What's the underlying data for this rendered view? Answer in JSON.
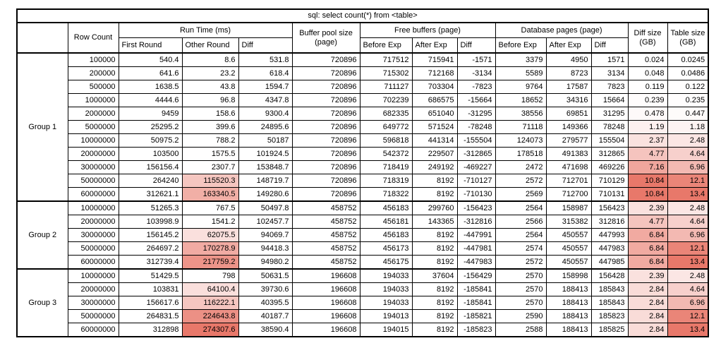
{
  "title": "sql: select count(*) from <table>",
  "header": {
    "row_count": "Row Count",
    "run_time": "Run Time (ms)",
    "first_round": "First Round",
    "other_round": "Other Round",
    "run_diff": "Diff",
    "buffer_pool_line1": "Buffer pool size",
    "buffer_pool_line2": "(page)",
    "free_buffers": "Free buffers (page)",
    "fb_before": "Before Exp",
    "fb_after": "After Exp",
    "fb_diff": "Diff",
    "database_pages": "Database pages (page)",
    "db_before": "Before Exp",
    "db_after": "After Exp",
    "db_diff": "Diff",
    "diff_size_line1": "Diff size",
    "diff_size_line2": "(GB)",
    "table_size_line1": "Table size",
    "table_size_line2": "(GB)"
  },
  "column_names": [
    "row-count",
    "first-round",
    "other-round",
    "run-time-diff",
    "buffer-pool-size",
    "free-before-exp",
    "free-after-exp",
    "free-diff",
    "db-before-exp",
    "db-after-exp",
    "db-diff",
    "diff-size-gb",
    "table-size-gb"
  ],
  "groups": [
    {
      "label": "Group 1",
      "rows": [
        [
          "100000",
          "540.4",
          "8.6",
          "531.8",
          "720896",
          "717512",
          "715941",
          "-1571",
          "3379",
          "4950",
          "1571",
          "0.024",
          "0.0245"
        ],
        [
          "200000",
          "641.6",
          "23.2",
          "618.4",
          "720896",
          "715302",
          "712168",
          "-3134",
          "5589",
          "8723",
          "3134",
          "0.048",
          "0.0486"
        ],
        [
          "500000",
          "1638.5",
          "43.8",
          "1594.7",
          "720896",
          "711127",
          "703304",
          "-7823",
          "9764",
          "17587",
          "7823",
          "0.119",
          "0.122"
        ],
        [
          "1000000",
          "4444.6",
          "96.8",
          "4347.8",
          "720896",
          "702239",
          "686575",
          "-15664",
          "18652",
          "34316",
          "15664",
          "0.239",
          "0.235"
        ],
        [
          "2000000",
          "9459",
          "158.6",
          "9300.4",
          "720896",
          "682335",
          "651040",
          "-31295",
          "38556",
          "69851",
          "31295",
          "0.478",
          "0.447"
        ],
        [
          "5000000",
          "25295.2",
          "399.6",
          "24895.6",
          "720896",
          "649772",
          "571524",
          "-78248",
          "71118",
          "149366",
          "78248",
          "1.19",
          "1.18"
        ],
        [
          "10000000",
          "50975.2",
          "788.2",
          "50187",
          "720896",
          "596818",
          "441314",
          "-155504",
          "124073",
          "279577",
          "155504",
          "2.37",
          "2.48"
        ],
        [
          "20000000",
          "103500",
          "1575.5",
          "101924.5",
          "720896",
          "542372",
          "229507",
          "-312865",
          "178518",
          "491383",
          "312865",
          "4.77",
          "4.64"
        ],
        [
          "30000000",
          "156156.4",
          "2307.7",
          "153848.7",
          "720896",
          "718419",
          "249192",
          "-469227",
          "2472",
          "471698",
          "469226",
          "7.16",
          "6.96"
        ],
        [
          "50000000",
          "264240",
          "115520.3",
          "148719.7",
          "720896",
          "718319",
          "8192",
          "-710127",
          "2572",
          "712701",
          "710129",
          "10.84",
          "12.1"
        ],
        [
          "60000000",
          "312621.1",
          "163340.5",
          "149280.6",
          "720896",
          "718322",
          "8192",
          "-710130",
          "2569",
          "712700",
          "710131",
          "10.84",
          "13.4"
        ]
      ]
    },
    {
      "label": "Group 2",
      "rows": [
        [
          "10000000",
          "51265.3",
          "767.5",
          "50497.8",
          "458752",
          "456183",
          "299760",
          "-156423",
          "2564",
          "158987",
          "156423",
          "2.39",
          "2.48"
        ],
        [
          "20000000",
          "103998.9",
          "1541.2",
          "102457.7",
          "458752",
          "456181",
          "143365",
          "-312816",
          "2566",
          "315382",
          "312816",
          "4.77",
          "4.64"
        ],
        [
          "30000000",
          "156145.2",
          "62075.5",
          "94069.7",
          "458752",
          "456183",
          "8192",
          "-447991",
          "2564",
          "450557",
          "447993",
          "6.84",
          "6.96"
        ],
        [
          "50000000",
          "264697.2",
          "170278.9",
          "94418.3",
          "458752",
          "456173",
          "8192",
          "-447981",
          "2574",
          "450557",
          "447983",
          "6.84",
          "12.1"
        ],
        [
          "60000000",
          "312739.4",
          "217759.2",
          "94980.2",
          "458752",
          "456175",
          "8192",
          "-447983",
          "2572",
          "450557",
          "447985",
          "6.84",
          "13.4"
        ]
      ]
    },
    {
      "label": "Group 3",
      "rows": [
        [
          "10000000",
          "51429.5",
          "798",
          "50631.5",
          "196608",
          "194033",
          "37604",
          "-156429",
          "2570",
          "158998",
          "156428",
          "2.39",
          "2.48"
        ],
        [
          "20000000",
          "103831",
          "64100.4",
          "39730.6",
          "196608",
          "194033",
          "8192",
          "-185841",
          "2570",
          "188413",
          "185843",
          "2.84",
          "4.64"
        ],
        [
          "30000000",
          "156617.6",
          "116222.1",
          "40395.5",
          "196608",
          "194033",
          "8192",
          "-185841",
          "2570",
          "188413",
          "185843",
          "2.84",
          "6.96"
        ],
        [
          "50000000",
          "264831.5",
          "224643.8",
          "40187.7",
          "196608",
          "194013",
          "8192",
          "-185821",
          "2590",
          "188413",
          "185823",
          "2.84",
          "12.1"
        ],
        [
          "60000000",
          "312898",
          "274307.6",
          "38590.4",
          "196608",
          "194015",
          "8192",
          "-185823",
          "2588",
          "188413",
          "185825",
          "2.84",
          "13.4"
        ]
      ]
    }
  ],
  "heat": {
    "base_color": "#e8786a",
    "columns": {
      "2": {
        "min": 8.6,
        "max": 274307.6
      },
      "11": {
        "min": 0.024,
        "max": 10.84
      },
      "12": {
        "min": 0.0245,
        "max": 13.4
      }
    }
  }
}
